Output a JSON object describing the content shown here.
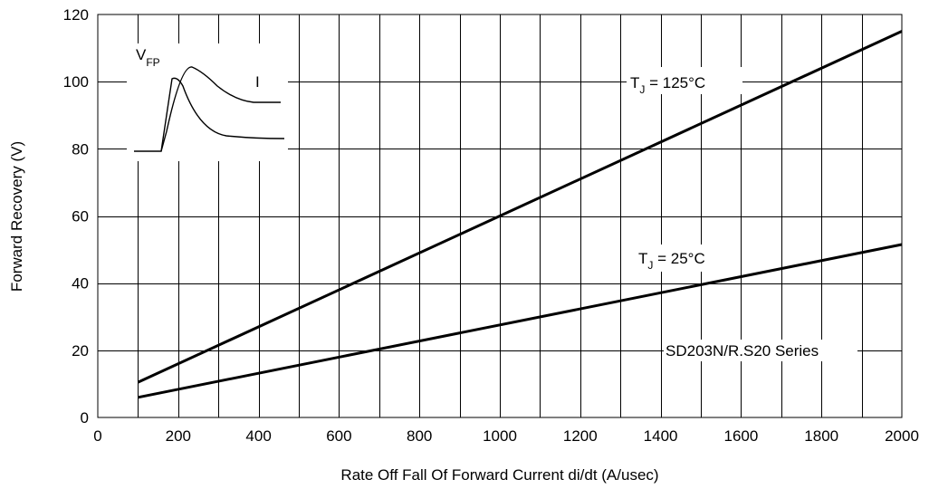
{
  "chart_data": {
    "type": "line",
    "title": "",
    "xlabel": "Rate Off Fall Of Forward Current di/dt (A/usec)",
    "ylabel": "Forward Recovery (V)",
    "xlim": [
      0,
      2000
    ],
    "ylim": [
      0,
      120
    ],
    "x_ticks": [
      0,
      200,
      400,
      600,
      800,
      1000,
      1200,
      1400,
      1600,
      1800,
      2000
    ],
    "y_ticks": [
      0,
      20,
      40,
      60,
      80,
      100,
      120
    ],
    "x_tick_labels": [
      "0",
      "200",
      "400",
      "600",
      "800",
      "1000",
      "1200",
      "1400",
      "1600",
      "1800",
      "2000"
    ],
    "y_tick_labels": [
      "0",
      "20",
      "40",
      "60",
      "80",
      "100",
      "120"
    ],
    "grid": true,
    "series": [
      {
        "label_main": "T",
        "label_sub": "J",
        "label_rest": " = 125°C",
        "x": [
          100,
          1000,
          2000
        ],
        "y": [
          10.5,
          60,
          115
        ]
      },
      {
        "label_main": "T",
        "label_sub": "J",
        "label_rest": " = 25°C",
        "x": [
          100,
          2000
        ],
        "y": [
          6,
          51.5
        ]
      }
    ],
    "annotations": {
      "series_note": "SD203N/R.S20 Series",
      "inset_vfp_main": "V",
      "inset_vfp_sub": "FP",
      "inset_current": "I"
    }
  }
}
